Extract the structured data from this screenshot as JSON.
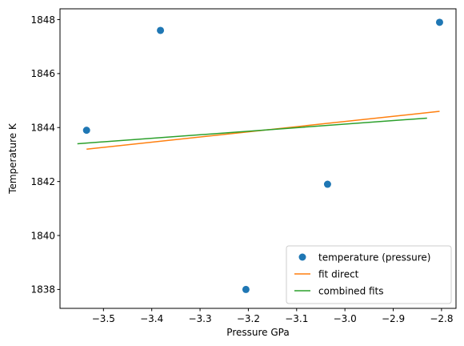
{
  "chart_data": {
    "type": "scatter",
    "title": "",
    "xlabel": "Pressure GPa",
    "ylabel": "Temperature K",
    "xlim": [
      -3.59,
      -2.77
    ],
    "ylim": [
      1837.3,
      1848.4
    ],
    "xticks": [
      -3.5,
      -3.4,
      -3.3,
      -3.2,
      -3.1,
      -3.0,
      -2.9,
      -2.8
    ],
    "xtick_labels": [
      "−3.5",
      "−3.4",
      "−3.3",
      "−3.2",
      "−3.1",
      "−3.0",
      "−2.9",
      "−2.8"
    ],
    "yticks": [
      1838,
      1840,
      1842,
      1844,
      1846,
      1848
    ],
    "ytick_labels": [
      "1838",
      "1840",
      "1842",
      "1844",
      "1846",
      "1848"
    ],
    "grid": false,
    "legend_position": "bottom-right",
    "series": [
      {
        "name": "temperature (pressure)",
        "kind": "markers",
        "color": "#1f77b4",
        "points": [
          {
            "x": -3.535,
            "y": 1843.9
          },
          {
            "x": -3.382,
            "y": 1847.6
          },
          {
            "x": -3.205,
            "y": 1838.0
          },
          {
            "x": -3.036,
            "y": 1841.9
          },
          {
            "x": -2.804,
            "y": 1847.9
          }
        ]
      },
      {
        "name": "fit direct",
        "kind": "line",
        "color": "#ff7f0e",
        "points": [
          {
            "x": -3.535,
            "y": 1843.2
          },
          {
            "x": -2.804,
            "y": 1844.6
          }
        ]
      },
      {
        "name": "combined fits",
        "kind": "line",
        "color": "#2ca02c",
        "points": [
          {
            "x": -3.554,
            "y": 1843.4
          },
          {
            "x": -2.83,
            "y": 1844.35
          }
        ]
      }
    ]
  }
}
